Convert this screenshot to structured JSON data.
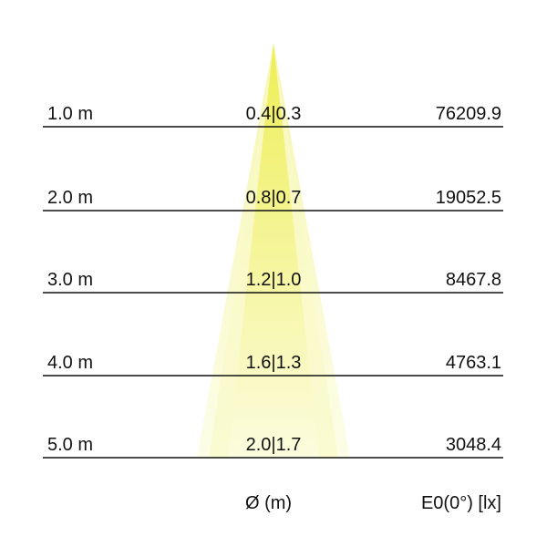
{
  "rows": [
    {
      "distance": "1.0 m",
      "diameter": "0.4|0.3",
      "illuminance": "76209.9"
    },
    {
      "distance": "2.0 m",
      "diameter": "0.8|0.7",
      "illuminance": "19052.5"
    },
    {
      "distance": "3.0 m",
      "diameter": "1.2|1.0",
      "illuminance": "8467.8"
    },
    {
      "distance": "4.0 m",
      "diameter": "1.6|1.3",
      "illuminance": "4763.1"
    },
    {
      "distance": "5.0 m",
      "diameter": "2.0|1.7",
      "illuminance": "3048.4"
    }
  ],
  "footer": {
    "diameter_label": "Ø (m)",
    "illuminance_label": "E0(0°) [lx]"
  },
  "colors": {
    "cone_core": "#eeee66",
    "cone_outer": "#fbfbd6",
    "line": "#111111"
  }
}
